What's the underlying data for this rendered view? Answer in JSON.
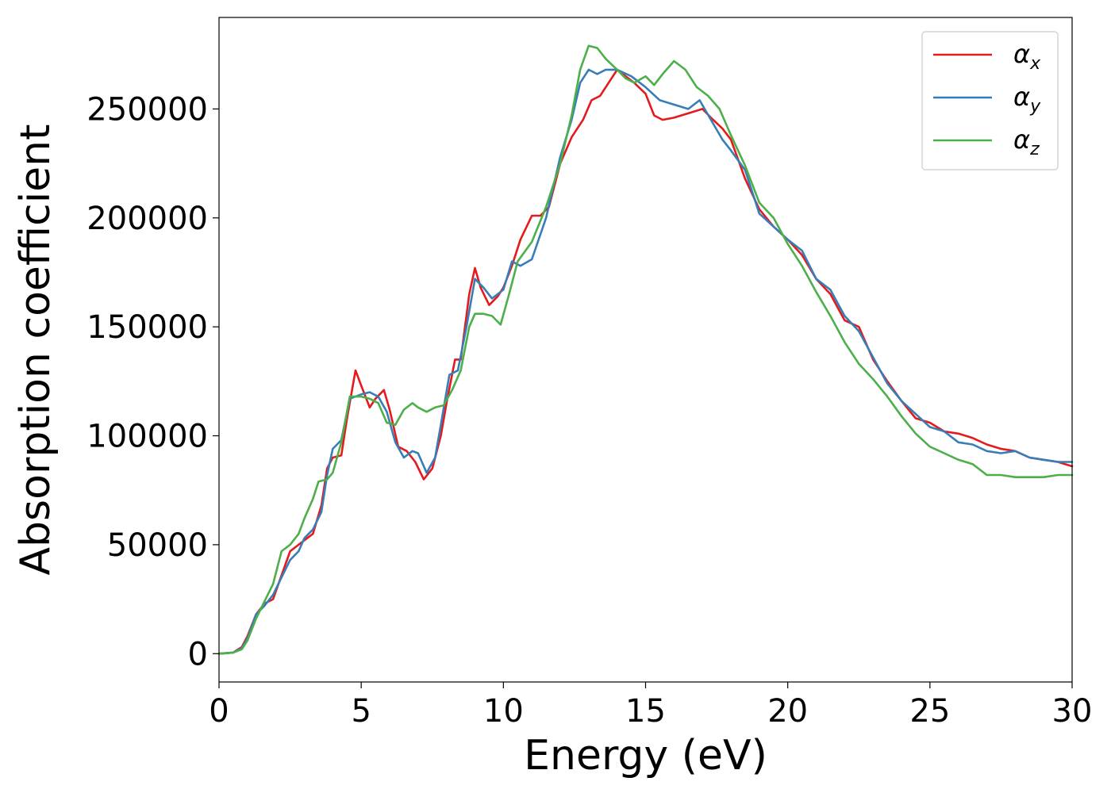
{
  "chart_data": {
    "type": "line",
    "xlabel": "Energy (eV)",
    "ylabel": "Absorption coefficient",
    "xlim": [
      0,
      30
    ],
    "ylim": [
      -13000,
      292000
    ],
    "xticks": [
      0,
      5,
      10,
      15,
      20,
      25,
      30
    ],
    "yticks": [
      0,
      50000,
      100000,
      150000,
      200000,
      250000
    ],
    "grid": false,
    "legend_position": "top-right",
    "series": [
      {
        "name": "α",
        "subscript": "x",
        "color": "#e41a1c",
        "points": [
          [
            0,
            0
          ],
          [
            0.5,
            500
          ],
          [
            0.8,
            3000
          ],
          [
            1.0,
            8000
          ],
          [
            1.3,
            18000
          ],
          [
            1.6,
            23000
          ],
          [
            1.9,
            25000
          ],
          [
            2.2,
            36000
          ],
          [
            2.5,
            47000
          ],
          [
            2.8,
            50000
          ],
          [
            3.0,
            52000
          ],
          [
            3.3,
            55000
          ],
          [
            3.6,
            68000
          ],
          [
            3.8,
            85000
          ],
          [
            4.0,
            90000
          ],
          [
            4.3,
            91000
          ],
          [
            4.5,
            108000
          ],
          [
            4.8,
            130000
          ],
          [
            5.0,
            123000
          ],
          [
            5.3,
            113000
          ],
          [
            5.5,
            117000
          ],
          [
            5.8,
            121000
          ],
          [
            6.0,
            112000
          ],
          [
            6.3,
            95000
          ],
          [
            6.6,
            93000
          ],
          [
            6.9,
            88000
          ],
          [
            7.2,
            80000
          ],
          [
            7.5,
            85000
          ],
          [
            7.8,
            100000
          ],
          [
            8.0,
            115000
          ],
          [
            8.3,
            135000
          ],
          [
            8.5,
            135000
          ],
          [
            8.8,
            165000
          ],
          [
            9.0,
            177000
          ],
          [
            9.2,
            168000
          ],
          [
            9.5,
            160000
          ],
          [
            9.8,
            164000
          ],
          [
            10.0,
            168000
          ],
          [
            10.3,
            178000
          ],
          [
            10.6,
            190000
          ],
          [
            11.0,
            201000
          ],
          [
            11.3,
            201000
          ],
          [
            11.6,
            205000
          ],
          [
            12.0,
            225000
          ],
          [
            12.4,
            237000
          ],
          [
            12.8,
            245000
          ],
          [
            13.1,
            254000
          ],
          [
            13.4,
            256000
          ],
          [
            13.7,
            262000
          ],
          [
            14.0,
            268000
          ],
          [
            14.3,
            265000
          ],
          [
            14.6,
            262000
          ],
          [
            15.0,
            257000
          ],
          [
            15.3,
            247000
          ],
          [
            15.6,
            245000
          ],
          [
            16.0,
            246000
          ],
          [
            16.5,
            248000
          ],
          [
            17.0,
            250000
          ],
          [
            17.3,
            246000
          ],
          [
            17.7,
            241000
          ],
          [
            18.0,
            236000
          ],
          [
            18.5,
            218000
          ],
          [
            19.0,
            204000
          ],
          [
            19.5,
            196000
          ],
          [
            20.0,
            190000
          ],
          [
            20.5,
            183000
          ],
          [
            21.0,
            172000
          ],
          [
            21.5,
            165000
          ],
          [
            22.0,
            153000
          ],
          [
            22.5,
            150000
          ],
          [
            23.0,
            135000
          ],
          [
            23.5,
            125000
          ],
          [
            24.0,
            116000
          ],
          [
            24.5,
            108000
          ],
          [
            25.0,
            106000
          ],
          [
            25.5,
            102000
          ],
          [
            26.0,
            101000
          ],
          [
            26.5,
            99000
          ],
          [
            27.0,
            96000
          ],
          [
            27.5,
            94000
          ],
          [
            28.0,
            93000
          ],
          [
            28.5,
            90000
          ],
          [
            29.0,
            89000
          ],
          [
            29.5,
            88000
          ],
          [
            30.0,
            86000
          ]
        ]
      },
      {
        "name": "α",
        "subscript": "y",
        "color": "#377eb8",
        "points": [
          [
            0,
            0
          ],
          [
            0.5,
            500
          ],
          [
            0.8,
            2500
          ],
          [
            1.0,
            7000
          ],
          [
            1.3,
            18000
          ],
          [
            1.6,
            22000
          ],
          [
            1.9,
            27000
          ],
          [
            2.2,
            35000
          ],
          [
            2.5,
            43000
          ],
          [
            2.8,
            47000
          ],
          [
            3.0,
            53000
          ],
          [
            3.3,
            57000
          ],
          [
            3.6,
            65000
          ],
          [
            3.8,
            82000
          ],
          [
            4.0,
            94000
          ],
          [
            4.3,
            98000
          ],
          [
            4.6,
            117000
          ],
          [
            5.0,
            119000
          ],
          [
            5.3,
            120000
          ],
          [
            5.6,
            118000
          ],
          [
            5.9,
            111000
          ],
          [
            6.2,
            97000
          ],
          [
            6.5,
            90000
          ],
          [
            6.8,
            93000
          ],
          [
            7.0,
            92000
          ],
          [
            7.3,
            83000
          ],
          [
            7.6,
            90000
          ],
          [
            7.8,
            105000
          ],
          [
            8.1,
            128000
          ],
          [
            8.4,
            130000
          ],
          [
            8.7,
            150000
          ],
          [
            9.0,
            172000
          ],
          [
            9.3,
            168000
          ],
          [
            9.6,
            163000
          ],
          [
            10.0,
            167000
          ],
          [
            10.3,
            180000
          ],
          [
            10.6,
            178000
          ],
          [
            11.0,
            181000
          ],
          [
            11.5,
            200000
          ],
          [
            12.0,
            228000
          ],
          [
            12.4,
            245000
          ],
          [
            12.7,
            262000
          ],
          [
            13.0,
            268000
          ],
          [
            13.3,
            266000
          ],
          [
            13.6,
            268000
          ],
          [
            14.0,
            268000
          ],
          [
            14.5,
            265000
          ],
          [
            15.0,
            260000
          ],
          [
            15.5,
            254000
          ],
          [
            16.0,
            252000
          ],
          [
            16.5,
            250000
          ],
          [
            16.9,
            254000
          ],
          [
            17.3,
            245000
          ],
          [
            17.7,
            236000
          ],
          [
            18.0,
            231000
          ],
          [
            18.5,
            222000
          ],
          [
            19.0,
            202000
          ],
          [
            19.5,
            196000
          ],
          [
            20.0,
            190000
          ],
          [
            20.5,
            185000
          ],
          [
            21.0,
            172000
          ],
          [
            21.5,
            167000
          ],
          [
            22.0,
            155000
          ],
          [
            22.5,
            148000
          ],
          [
            23.0,
            136000
          ],
          [
            23.5,
            124000
          ],
          [
            24.0,
            116000
          ],
          [
            24.5,
            110000
          ],
          [
            25.0,
            104000
          ],
          [
            25.5,
            102000
          ],
          [
            26.0,
            97000
          ],
          [
            26.5,
            96000
          ],
          [
            27.0,
            93000
          ],
          [
            27.5,
            92000
          ],
          [
            28.0,
            93000
          ],
          [
            28.5,
            90000
          ],
          [
            29.0,
            89000
          ],
          [
            29.5,
            88000
          ],
          [
            30.0,
            88000
          ]
        ]
      },
      {
        "name": "α",
        "subscript": "z",
        "color": "#4daf4a",
        "points": [
          [
            0,
            0
          ],
          [
            0.5,
            500
          ],
          [
            0.8,
            2000
          ],
          [
            1.0,
            6000
          ],
          [
            1.3,
            16000
          ],
          [
            1.6,
            24000
          ],
          [
            1.9,
            32000
          ],
          [
            2.2,
            47000
          ],
          [
            2.5,
            50000
          ],
          [
            2.8,
            55000
          ],
          [
            3.0,
            62000
          ],
          [
            3.3,
            71000
          ],
          [
            3.5,
            79000
          ],
          [
            3.8,
            80000
          ],
          [
            4.0,
            83000
          ],
          [
            4.3,
            97000
          ],
          [
            4.6,
            118000
          ],
          [
            5.0,
            118000
          ],
          [
            5.3,
            117000
          ],
          [
            5.6,
            115000
          ],
          [
            5.9,
            106000
          ],
          [
            6.2,
            105000
          ],
          [
            6.5,
            112000
          ],
          [
            6.8,
            115000
          ],
          [
            7.0,
            113000
          ],
          [
            7.3,
            111000
          ],
          [
            7.6,
            113000
          ],
          [
            7.9,
            114000
          ],
          [
            8.2,
            121000
          ],
          [
            8.5,
            130000
          ],
          [
            8.8,
            150000
          ],
          [
            9.0,
            156000
          ],
          [
            9.3,
            156000
          ],
          [
            9.6,
            155000
          ],
          [
            9.9,
            151000
          ],
          [
            10.2,
            165000
          ],
          [
            10.5,
            180000
          ],
          [
            11.0,
            189000
          ],
          [
            11.5,
            205000
          ],
          [
            12.0,
            225000
          ],
          [
            12.4,
            247000
          ],
          [
            12.7,
            268000
          ],
          [
            13.0,
            279000
          ],
          [
            13.3,
            278000
          ],
          [
            13.6,
            273000
          ],
          [
            14.0,
            268000
          ],
          [
            14.3,
            264000
          ],
          [
            14.6,
            262000
          ],
          [
            15.0,
            265000
          ],
          [
            15.3,
            261000
          ],
          [
            15.6,
            266000
          ],
          [
            16.0,
            272000
          ],
          [
            16.4,
            268000
          ],
          [
            16.8,
            260000
          ],
          [
            17.2,
            256000
          ],
          [
            17.6,
            250000
          ],
          [
            18.0,
            238000
          ],
          [
            18.5,
            224000
          ],
          [
            19.0,
            207000
          ],
          [
            19.5,
            200000
          ],
          [
            20.0,
            188000
          ],
          [
            20.5,
            178000
          ],
          [
            21.0,
            166000
          ],
          [
            21.5,
            155000
          ],
          [
            22.0,
            143000
          ],
          [
            22.5,
            133000
          ],
          [
            23.0,
            126000
          ],
          [
            23.5,
            118000
          ],
          [
            24.0,
            109000
          ],
          [
            24.5,
            101000
          ],
          [
            25.0,
            95000
          ],
          [
            25.5,
            92000
          ],
          [
            26.0,
            89000
          ],
          [
            26.5,
            87000
          ],
          [
            27.0,
            82000
          ],
          [
            27.5,
            82000
          ],
          [
            28.0,
            81000
          ],
          [
            28.5,
            81000
          ],
          [
            29.0,
            81000
          ],
          [
            29.5,
            82000
          ],
          [
            30.0,
            82000
          ]
        ]
      }
    ]
  }
}
